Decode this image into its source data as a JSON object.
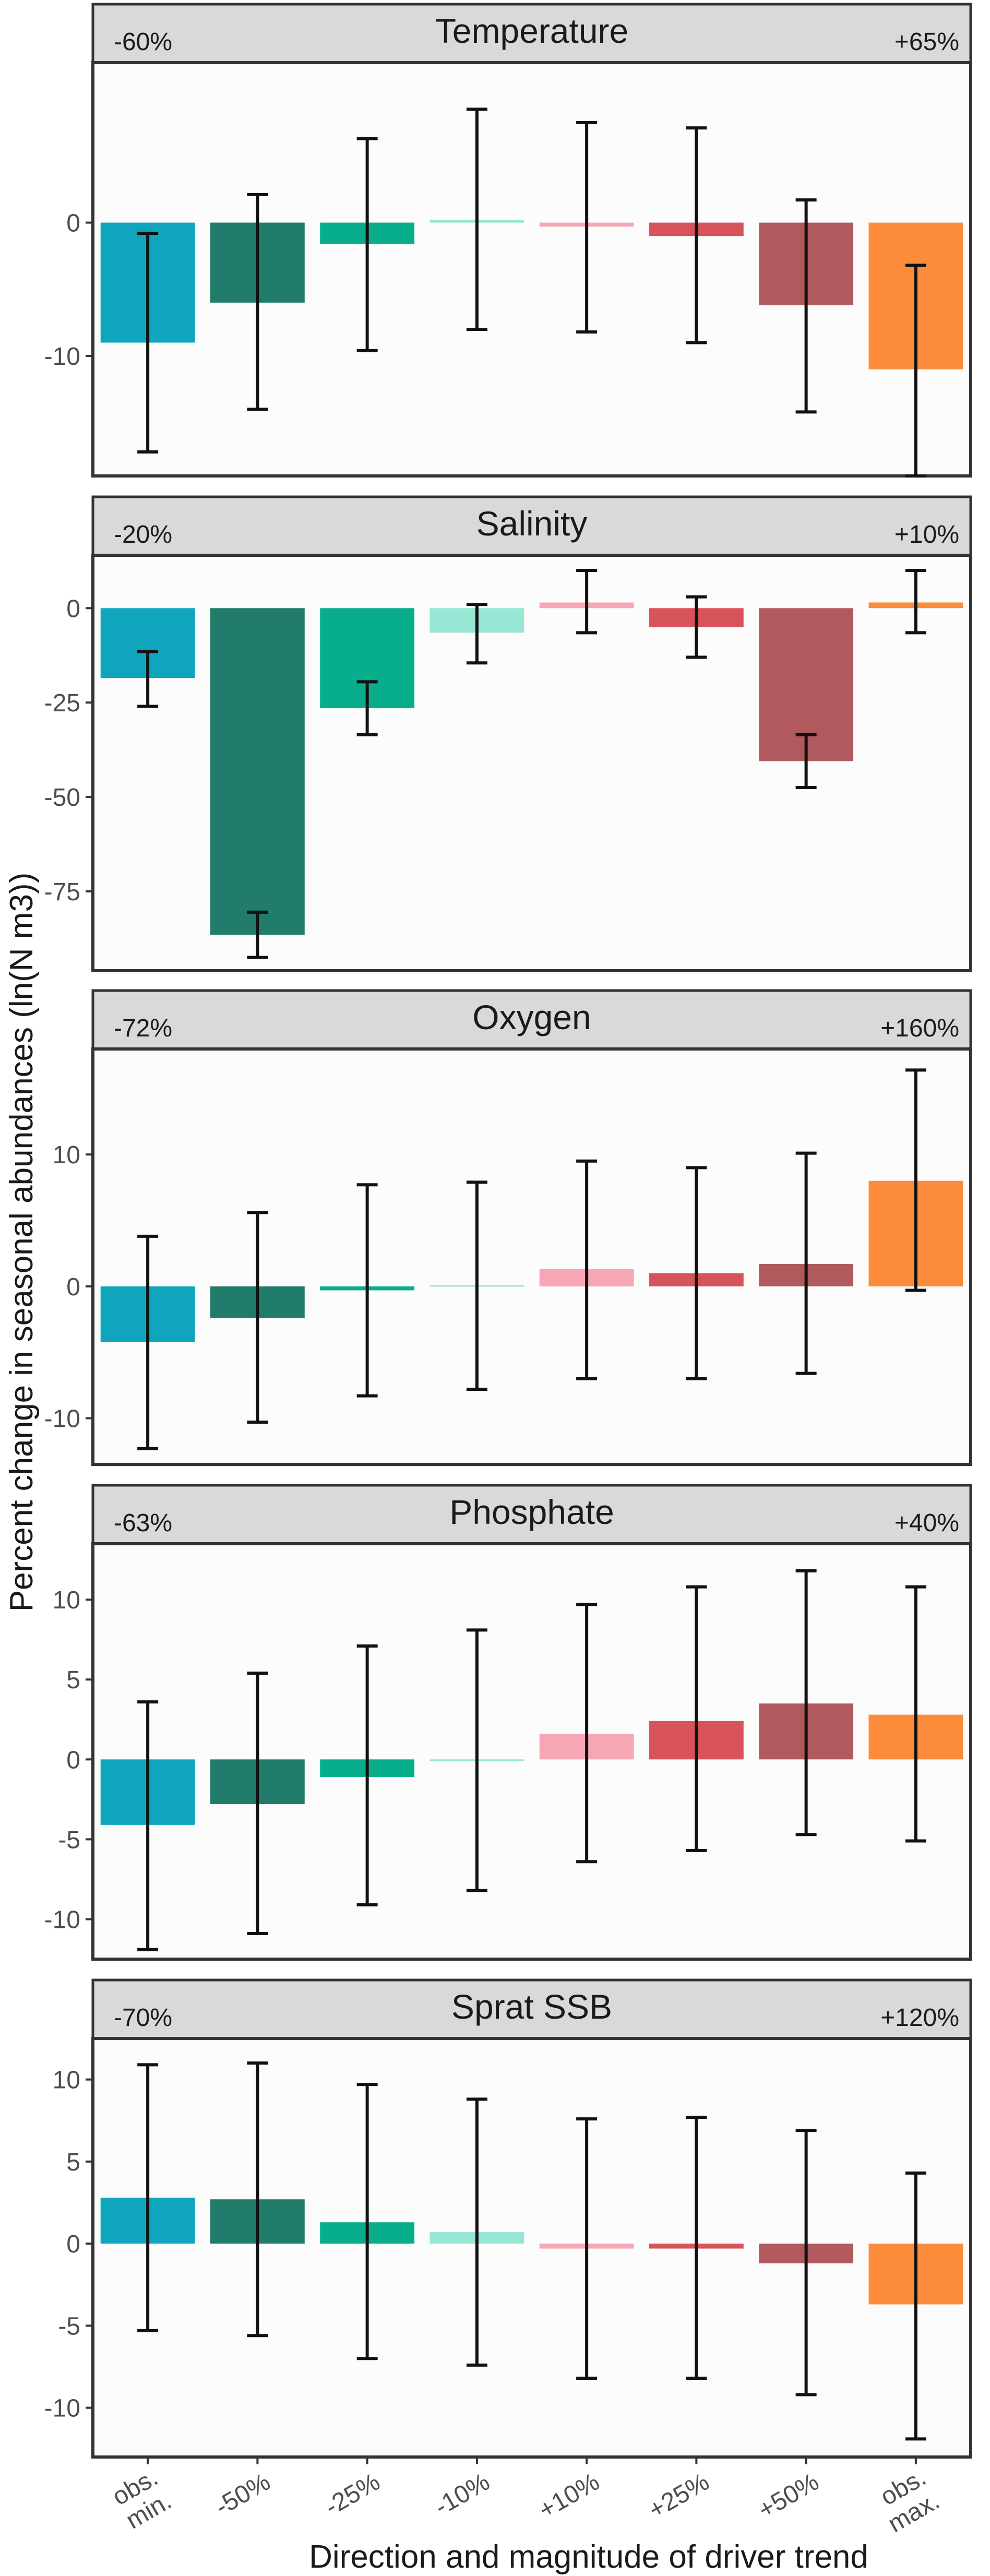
{
  "chart_data": {
    "type": "bar",
    "y_axis_title": "Percent change in seasonal abundances (ln(N m3))",
    "x_axis_title": "Direction and magnitude of driver trend",
    "categories": [
      [
        "obs.",
        "min."
      ],
      [
        "-50%"
      ],
      [
        "-25%"
      ],
      [
        "-10%"
      ],
      [
        "+10%"
      ],
      [
        "+25%"
      ],
      [
        "+50%"
      ],
      [
        "obs.",
        "max."
      ]
    ],
    "bar_colors": [
      "#0fa5bc",
      "#217c6b",
      "#08ad8b",
      "#98e6d4",
      "#f7a6b5",
      "#d9535a",
      "#b05a5d",
      "#fb8c3c"
    ],
    "panels": [
      {
        "title": "Temperature",
        "left_label": "-60%",
        "right_label": "+65%",
        "ylim": [
          -19,
          12
        ],
        "yticks": [
          0,
          -10
        ],
        "ytick_labels": [
          "0",
          "-10"
        ],
        "values": [
          -9.0,
          -6.0,
          -1.6,
          0.2,
          -0.3,
          -1.0,
          -6.2,
          -11.0
        ],
        "err_low": [
          -17.2,
          -14.0,
          -9.6,
          -8.0,
          -8.2,
          -9.0,
          -14.2,
          -19.0
        ],
        "err_high": [
          -0.8,
          2.1,
          6.3,
          8.5,
          7.5,
          7.1,
          1.7,
          -3.2
        ]
      },
      {
        "title": "Salinity",
        "left_label": "-20%",
        "right_label": "+10%",
        "ylim": [
          -96,
          14
        ],
        "yticks": [
          0,
          -25,
          -50,
          -75
        ],
        "ytick_labels": [
          "0",
          "-25",
          "-50",
          "-75"
        ],
        "values": [
          -18.5,
          -86.5,
          -26.5,
          -6.5,
          1.5,
          -5.0,
          -40.5,
          1.5
        ],
        "err_low": [
          -26.0,
          -92.5,
          -33.5,
          -14.5,
          -6.5,
          -13.0,
          -47.5,
          -6.5
        ],
        "err_high": [
          -11.5,
          -80.5,
          -19.5,
          1.0,
          10.0,
          3.0,
          -33.5,
          10.0
        ]
      },
      {
        "title": "Oxygen",
        "left_label": "-72%",
        "right_label": "+160%",
        "ylim": [
          -13.5,
          18
        ],
        "yticks": [
          10,
          0,
          -10
        ],
        "ytick_labels": [
          "10",
          "0",
          "-10"
        ],
        "values": [
          -4.2,
          -2.4,
          -0.3,
          0.1,
          1.3,
          1.0,
          1.7,
          8.0
        ],
        "err_low": [
          -12.3,
          -10.3,
          -8.3,
          -7.8,
          -7.0,
          -7.0,
          -6.6,
          -0.3
        ],
        "err_high": [
          3.8,
          5.6,
          7.7,
          7.9,
          9.5,
          9.0,
          10.1,
          16.4
        ]
      },
      {
        "title": "Phosphate",
        "left_label": "-63%",
        "right_label": "+40%",
        "ylim": [
          -12.5,
          13.5
        ],
        "yticks": [
          10,
          5,
          0,
          -5,
          -10
        ],
        "ytick_labels": [
          "10",
          "5",
          "0",
          "-5",
          "-10"
        ],
        "values": [
          -4.1,
          -2.8,
          -1.1,
          -0.1,
          1.6,
          2.4,
          3.5,
          2.8
        ],
        "err_low": [
          -11.9,
          -10.9,
          -9.1,
          -8.2,
          -6.4,
          -5.7,
          -4.7,
          -5.1
        ],
        "err_high": [
          3.6,
          5.4,
          7.1,
          8.1,
          9.7,
          10.8,
          11.8,
          10.8
        ]
      },
      {
        "title": "Sprat SSB",
        "left_label": "-70%",
        "right_label": "+120%",
        "ylim": [
          -13,
          12.5
        ],
        "yticks": [
          10,
          5,
          0,
          -5,
          -10
        ],
        "ytick_labels": [
          "10",
          "5",
          "0",
          "-5",
          "-10"
        ],
        "values": [
          2.8,
          2.7,
          1.3,
          0.7,
          -0.3,
          -0.3,
          -1.2,
          -3.7
        ],
        "err_low": [
          -5.3,
          -5.6,
          -7.0,
          -7.4,
          -8.2,
          -8.2,
          -9.2,
          -11.9
        ],
        "err_high": [
          10.9,
          11.0,
          9.7,
          8.8,
          7.6,
          7.7,
          6.9,
          4.3
        ]
      }
    ]
  }
}
